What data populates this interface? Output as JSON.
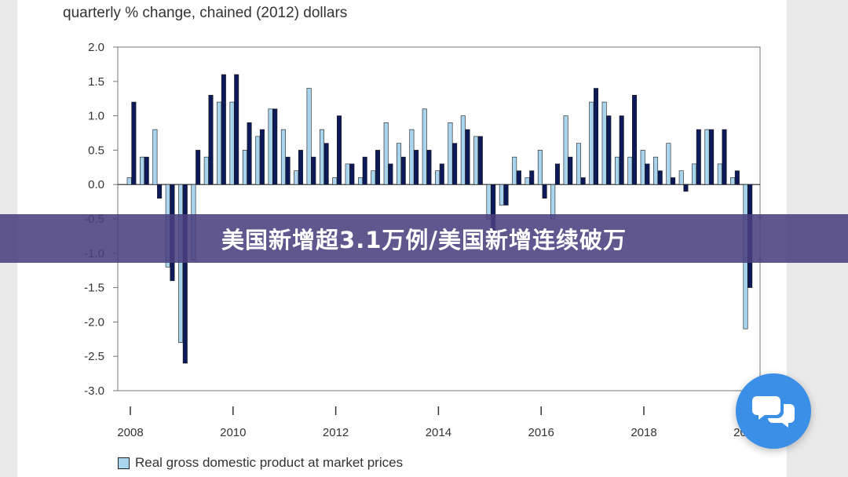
{
  "unit_label": "quarterly % change, chained (2012) dollars",
  "banner": {
    "text": "美国新增超3.1万例/美国新增连续破万"
  },
  "legend": {
    "label": "Real gross domestic product at market prices"
  },
  "colors": {
    "series_light": "#a8d4ee",
    "series_dark": "#0d1a5a",
    "banner": "#4a4080",
    "chat": "#3b8fe6"
  },
  "icons": {
    "chat": "chat-bubbles-icon"
  },
  "chart_data": {
    "type": "bar",
    "title": "",
    "xlabel": "",
    "ylabel": "",
    "ylim": [
      -3.0,
      2.0
    ],
    "y_ticks": [
      "2.0",
      "1.5",
      "1.0",
      "0.5",
      "0.0",
      "-0.5",
      "-1.0",
      "-1.5",
      "-2.0",
      "-2.5",
      "-3.0"
    ],
    "x_ticks": [
      "2008",
      "2010",
      "2012",
      "2014",
      "2016",
      "2018",
      "2020"
    ],
    "grid": false,
    "legend_position": "bottom-left",
    "categories": [
      "2008Q1",
      "2008Q2",
      "2008Q3",
      "2008Q4",
      "2009Q1",
      "2009Q2",
      "2009Q3",
      "2009Q4",
      "2010Q1",
      "2010Q2",
      "2010Q3",
      "2010Q4",
      "2011Q1",
      "2011Q2",
      "2011Q3",
      "2011Q4",
      "2012Q1",
      "2012Q2",
      "2012Q3",
      "2012Q4",
      "2013Q1",
      "2013Q2",
      "2013Q3",
      "2013Q4",
      "2014Q1",
      "2014Q2",
      "2014Q3",
      "2014Q4",
      "2015Q1",
      "2015Q2",
      "2015Q3",
      "2015Q4",
      "2016Q1",
      "2016Q2",
      "2016Q3",
      "2016Q4",
      "2017Q1",
      "2017Q2",
      "2017Q3",
      "2017Q4",
      "2018Q1",
      "2018Q2",
      "2018Q3",
      "2018Q4",
      "2019Q1",
      "2019Q2",
      "2019Q3",
      "2019Q4",
      "2020Q1"
    ],
    "series": [
      {
        "name": "Real gross domestic product at market prices",
        "values": [
          0.1,
          0.4,
          0.8,
          -1.2,
          -2.3,
          -1.1,
          0.4,
          1.2,
          1.2,
          0.5,
          0.7,
          1.1,
          0.8,
          0.2,
          1.4,
          0.8,
          0.1,
          0.3,
          0.1,
          0.2,
          0.9,
          0.6,
          0.8,
          1.1,
          0.2,
          0.9,
          1.0,
          0.7,
          -0.5,
          -0.3,
          0.4,
          0.1,
          0.5,
          -0.5,
          1.0,
          0.6,
          1.2,
          1.2,
          0.4,
          0.4,
          0.5,
          0.4,
          0.6,
          0.2,
          0.3,
          0.8,
          0.3,
          0.1,
          -2.1
        ]
      },
      {
        "name": "",
        "values": [
          1.2,
          0.4,
          -0.2,
          -1.4,
          -2.6,
          0.5,
          1.3,
          1.6,
          1.6,
          0.9,
          0.8,
          1.1,
          0.4,
          0.5,
          0.4,
          0.6,
          1.0,
          0.3,
          0.4,
          0.5,
          0.3,
          0.4,
          0.5,
          0.5,
          0.3,
          0.6,
          0.8,
          0.7,
          -0.7,
          -0.3,
          0.2,
          0.2,
          -0.2,
          0.3,
          0.4,
          0.1,
          1.4,
          1.0,
          1.0,
          1.3,
          0.3,
          0.2,
          0.1,
          -0.1,
          0.8,
          0.8,
          0.8,
          0.2,
          -1.5
        ]
      }
    ]
  }
}
